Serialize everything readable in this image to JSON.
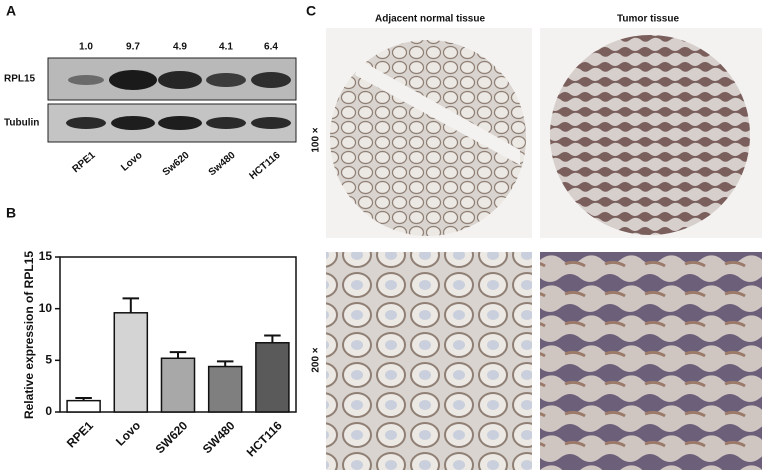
{
  "panel_labels": [
    "A",
    "B",
    "C"
  ],
  "blot": {
    "ratios": [
      "1.0",
      "9.7",
      "4.9",
      "4.1",
      "6.4"
    ],
    "rows": [
      "RPL15",
      "Tubulin"
    ],
    "lanes": [
      "RPE1",
      "Lovo",
      "Sw620",
      "Sw480",
      "HCT116"
    ]
  },
  "chart_data": {
    "type": "bar",
    "y_label": "Relative expression of RPL15",
    "categories": [
      "RPE1",
      "Lovo",
      "SW620",
      "SW480",
      "HCT116"
    ],
    "values": [
      1.1,
      9.6,
      5.2,
      4.4,
      6.7
    ],
    "errors": [
      0.25,
      1.4,
      0.6,
      0.5,
      0.7
    ],
    "colors": [
      "#ffffff",
      "#d4d4d4",
      "#a8a8a8",
      "#7f7f7f",
      "#5a5a5a"
    ],
    "ylim": [
      0,
      15
    ],
    "yticks": [
      0,
      5,
      10,
      15
    ]
  },
  "histology": {
    "columns": [
      "Adjacent normal tissue",
      "Tumor tissue"
    ],
    "rows": [
      "100 ×",
      "200 ×"
    ]
  }
}
